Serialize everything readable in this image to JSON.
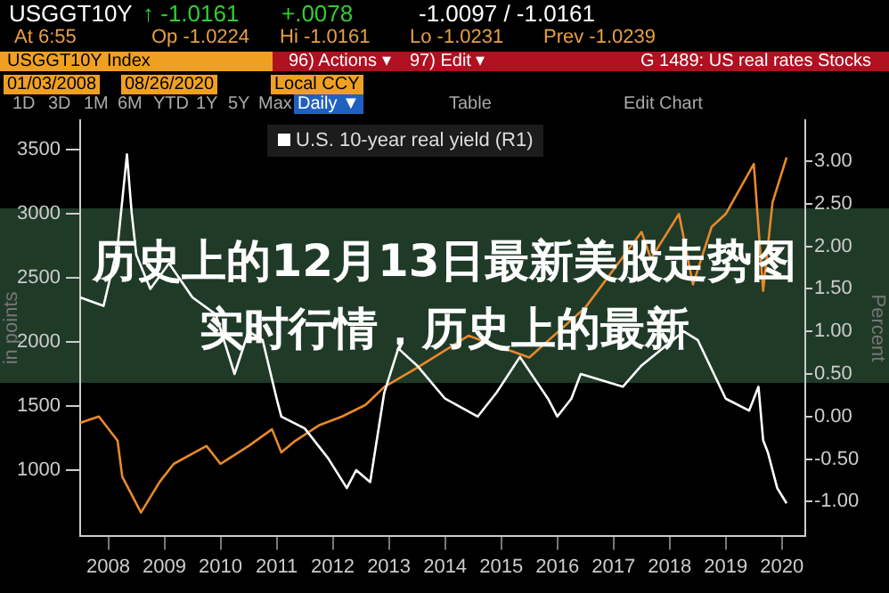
{
  "chart_data": {
    "type": "line",
    "title": "历史上的12月13日最新美股走势图实时行情，历史上的最新",
    "ylabel": "in points",
    "y2label": "Percent",
    "annotations": [
      "USGGT10Y",
      "↑ -1.0161",
      "+.0078",
      "-1.0097 / -1.0161",
      "At 6:55",
      "Op -1.0224",
      "Hi -1.0161",
      "Lo -1.0231",
      "Prev -1.0239",
      "USGGT10Y Index",
      "96) Actions ▾",
      "97) Edit ▾",
      "G 1489: US real rates Stocks",
      "01/03/2008",
      "08/26/2020",
      "Local CCY",
      "1D",
      "3D",
      "1M",
      "6M",
      "YTD",
      "1Y",
      "5Y",
      "Max",
      "Daily ▼",
      "Table",
      "Edit Chart"
    ],
    "xlim": [
      "2008-01",
      "2020-12"
    ],
    "xticks": [
      {
        "value": "2008-07",
        "label": "2008"
      },
      {
        "value": "2009-07",
        "label": "2009"
      },
      {
        "value": "2010-07",
        "label": "2010"
      },
      {
        "value": "2011-07",
        "label": "2011"
      },
      {
        "value": "2012-07",
        "label": "2012"
      },
      {
        "value": "2013-07",
        "label": "2013"
      },
      {
        "value": "2014-07",
        "label": "2014"
      },
      {
        "value": "2015-07",
        "label": "2015"
      },
      {
        "value": "2016-07",
        "label": "2016"
      },
      {
        "value": "2017-07",
        "label": "2017"
      },
      {
        "value": "2018-07",
        "label": "2018"
      },
      {
        "value": "2019-07",
        "label": "2019"
      },
      {
        "value": "2020-07",
        "label": "2020"
      }
    ],
    "ylim": [
      490,
      3730
    ],
    "yticks": [
      1000,
      1500,
      2000,
      2500,
      3000,
      3500
    ],
    "y2lim": [
      -1.4,
      3.48
    ],
    "y2ticks": [
      {
        "value": -1,
        "label": "-1.00"
      },
      {
        "value": -0.5,
        "label": "-0.50"
      },
      {
        "value": 0,
        "label": "0.00"
      },
      {
        "value": 0.5,
        "label": "0.50"
      },
      {
        "value": 1,
        "label": "1.00"
      },
      {
        "value": 1.5,
        "label": "1.50"
      },
      {
        "value": 2,
        "label": "2.00"
      },
      {
        "value": 2.5,
        "label": "2.50"
      },
      {
        "value": 3,
        "label": "3.00"
      }
    ],
    "legend": "top",
    "marker": "none",
    "series": [
      {
        "name": "U.S. 10-year real yield (R1)",
        "color": "#ffffff",
        "axis": "y2",
        "x": [
          "2008-01",
          "2008-06",
          "2008-09",
          "2008-11",
          "2008-12",
          "2009-01",
          "2009-04",
          "2009-08",
          "2010-01",
          "2010-06",
          "2010-10",
          "2011-01",
          "2011-04",
          "2011-07",
          "2011-08",
          "2012-01",
          "2012-06",
          "2012-10",
          "2012-12",
          "2013-03",
          "2013-06",
          "2013-09",
          "2014-01",
          "2014-07",
          "2015-02",
          "2015-06",
          "2015-11",
          "2016-05",
          "2016-07",
          "2016-10",
          "2016-12",
          "2017-09",
          "2018-01",
          "2018-10",
          "2019-01",
          "2019-07",
          "2019-12",
          "2020-02",
          "2020-03",
          "2020-04",
          "2020-06",
          "2020-08"
        ],
        "values": [
          1.4,
          1.3,
          2.0,
          3.08,
          2.4,
          1.9,
          1.5,
          1.8,
          1.4,
          1.2,
          0.5,
          1.0,
          0.9,
          0.21,
          0.0,
          -0.14,
          -0.49,
          -0.84,
          -0.63,
          -0.77,
          0.28,
          0.8,
          0.6,
          0.21,
          0.0,
          0.28,
          0.7,
          0.21,
          0.0,
          0.21,
          0.5,
          0.35,
          0.6,
          1.0,
          0.9,
          0.21,
          0.07,
          0.35,
          -0.28,
          -0.42,
          -0.84,
          -1.02
        ]
      },
      {
        "color": "#e8892b",
        "x": [
          "2008-01",
          "2008-05",
          "2008-09",
          "2008-10",
          "2009-02",
          "2009-06",
          "2009-09",
          "2010-04",
          "2010-07",
          "2011-01",
          "2011-06",
          "2011-08",
          "2011-11",
          "2012-04",
          "2012-09",
          "2013-02",
          "2013-06",
          "2014-01",
          "2014-12",
          "2016-01",
          "2017-01",
          "2018-01",
          "2018-03",
          "2018-09",
          "2018-12",
          "2019-04",
          "2019-07",
          "2020-01",
          "2020-03",
          "2020-05",
          "2020-08"
        ],
        "values": [
          1370,
          1420,
          1230,
          950,
          670,
          910,
          1050,
          1190,
          1050,
          1190,
          1320,
          1140,
          1230,
          1350,
          1420,
          1510,
          1650,
          1800,
          2050,
          1880,
          2270,
          2860,
          2650,
          3000,
          2450,
          2900,
          3000,
          3390,
          2400,
          3090,
          3440
        ]
      }
    ]
  }
}
